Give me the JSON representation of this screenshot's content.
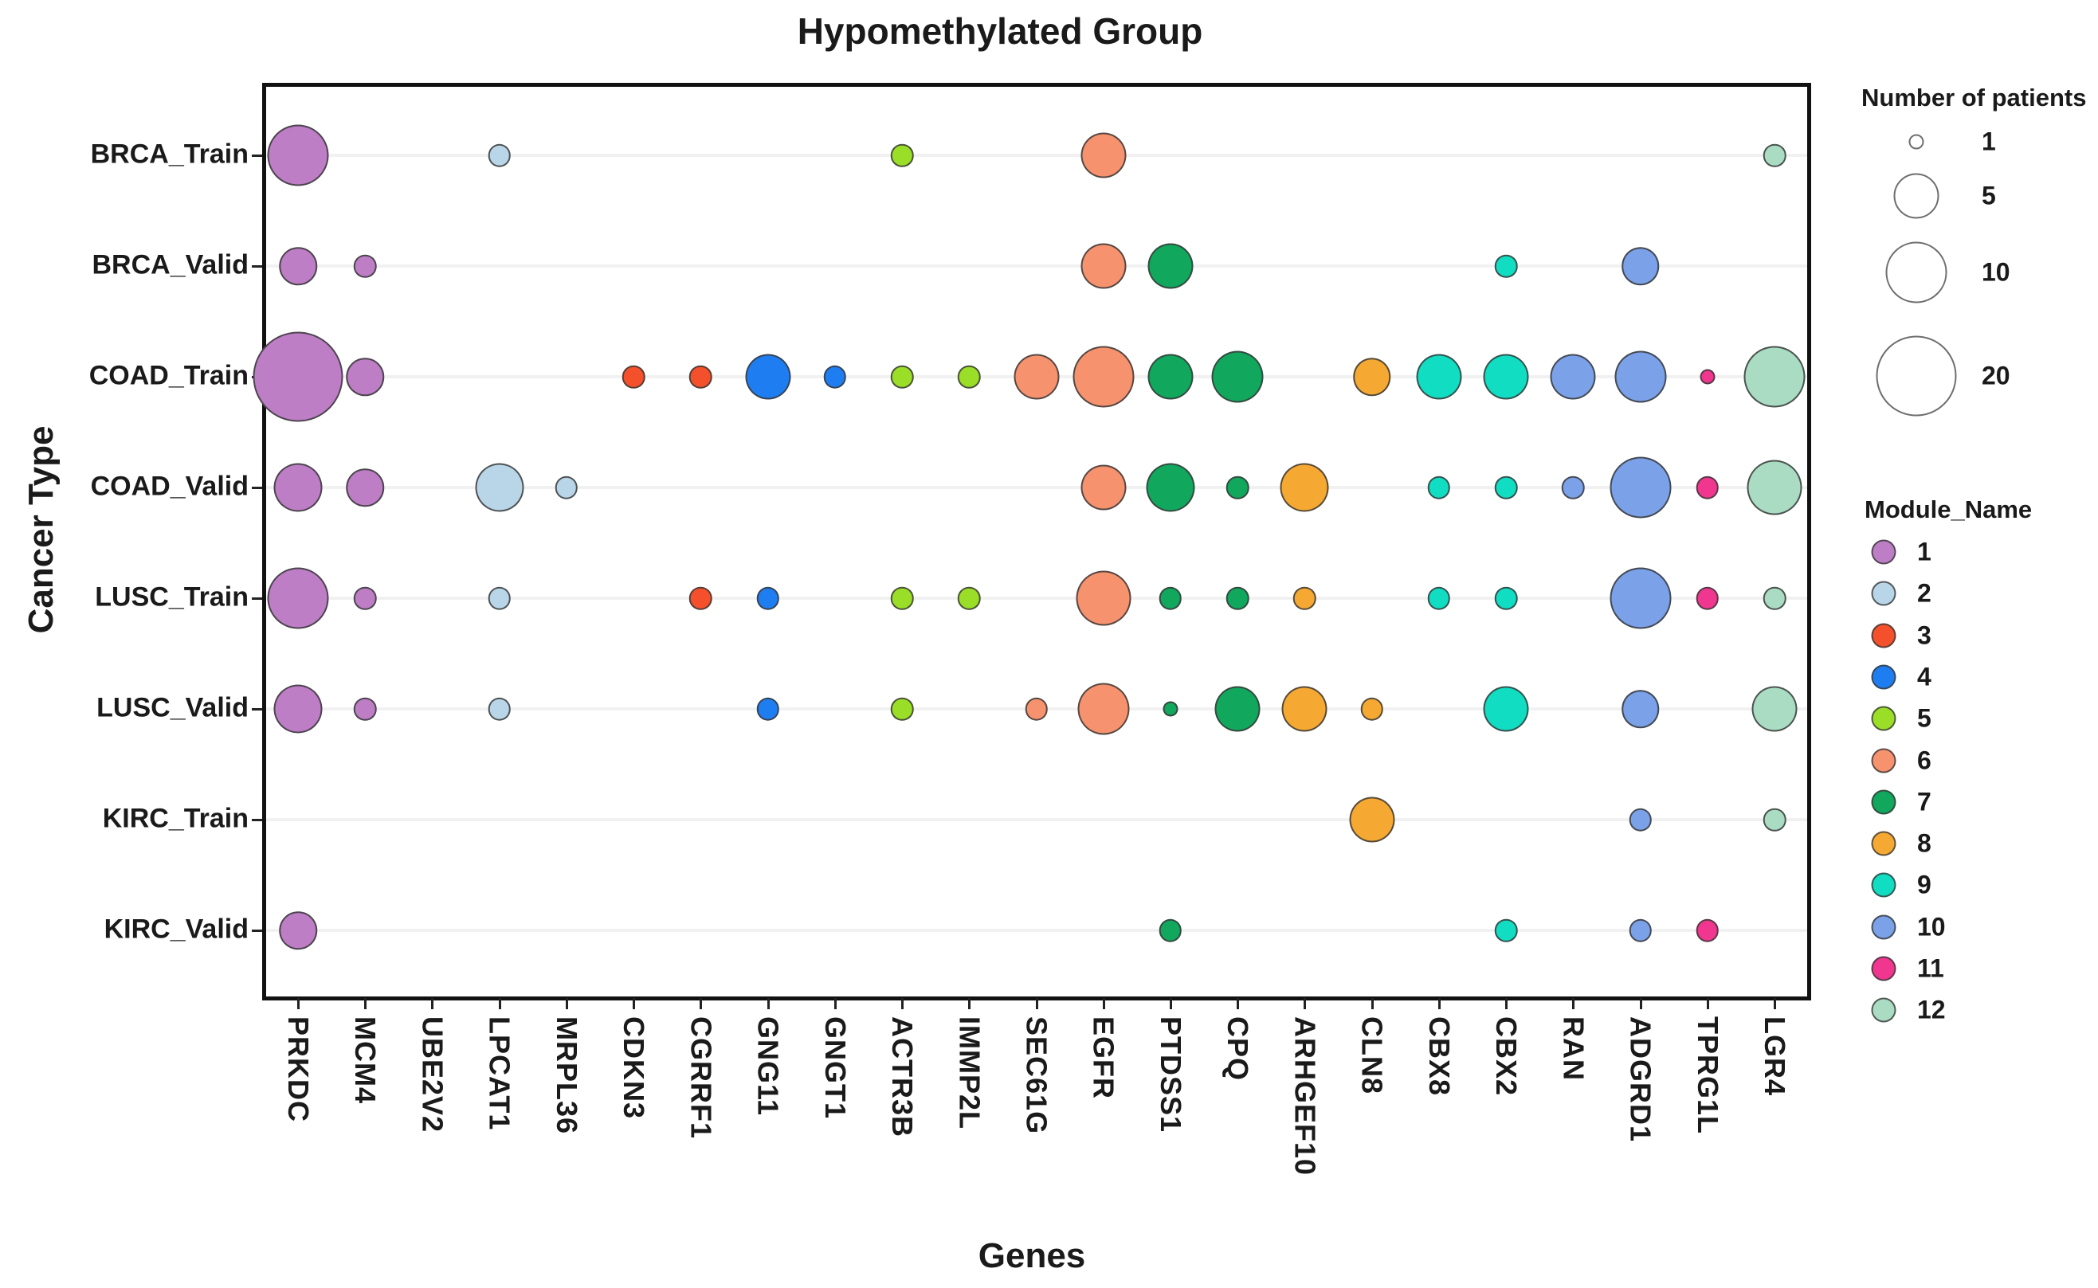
{
  "chart_data": {
    "type": "scatter",
    "subtype": "bubble",
    "title": "Hypomethylated Group",
    "xlabel": "Genes",
    "ylabel": "Cancer Type",
    "grid": "faint-horizontal",
    "legend_position": "right",
    "x_categories": [
      "PRKDC",
      "MCM4",
      "UBE2V2",
      "LPCAT1",
      "MRPL36",
      "CDKN3",
      "CGRRF1",
      "GNG11",
      "GNGT1",
      "ACTR3B",
      "IMMP2L",
      "SEC61G",
      "EGFR",
      "PTDSS1",
      "CPQ",
      "ARHGEF10",
      "CLN8",
      "CBX8",
      "CBX2",
      "RAN",
      "ADGRD1",
      "TPRG1L",
      "LGR4"
    ],
    "y_categories": [
      "BRCA_Train",
      "BRCA_Valid",
      "COAD_Train",
      "COAD_Valid",
      "LUSC_Train",
      "LUSC_Valid",
      "KIRC_Train",
      "KIRC_Valid"
    ],
    "gene_module": {
      "PRKDC": 1,
      "MCM4": 1,
      "UBE2V2": 1,
      "LPCAT1": 2,
      "MRPL36": 2,
      "CDKN3": 3,
      "CGRRF1": 3,
      "GNG11": 4,
      "GNGT1": 4,
      "ACTR3B": 5,
      "IMMP2L": 5,
      "SEC61G": 6,
      "EGFR": 6,
      "PTDSS1": 7,
      "CPQ": 7,
      "ARHGEF10": 8,
      "CLN8": 8,
      "CBX8": 9,
      "CBX2": 9,
      "RAN": 10,
      "ADGRD1": 10,
      "TPRG1L": 11,
      "LGR4": 12
    },
    "points": [
      {
        "row": "BRCA_Train",
        "gene": "PRKDC",
        "patients": 10
      },
      {
        "row": "BRCA_Train",
        "gene": "LPCAT1",
        "patients": 2
      },
      {
        "row": "BRCA_Train",
        "gene": "ACTR3B",
        "patients": 2
      },
      {
        "row": "BRCA_Train",
        "gene": "EGFR",
        "patients": 5
      },
      {
        "row": "BRCA_Train",
        "gene": "LGR4",
        "patients": 2
      },
      {
        "row": "BRCA_Valid",
        "gene": "PRKDC",
        "patients": 4
      },
      {
        "row": "BRCA_Valid",
        "gene": "MCM4",
        "patients": 2
      },
      {
        "row": "BRCA_Valid",
        "gene": "EGFR",
        "patients": 5
      },
      {
        "row": "BRCA_Valid",
        "gene": "PTDSS1",
        "patients": 5
      },
      {
        "row": "BRCA_Valid",
        "gene": "CBX2",
        "patients": 2
      },
      {
        "row": "BRCA_Valid",
        "gene": "ADGRD1",
        "patients": 4
      },
      {
        "row": "COAD_Train",
        "gene": "PRKDC",
        "patients": 25
      },
      {
        "row": "COAD_Train",
        "gene": "MCM4",
        "patients": 4
      },
      {
        "row": "COAD_Train",
        "gene": "CDKN3",
        "patients": 2
      },
      {
        "row": "COAD_Train",
        "gene": "CGRRF1",
        "patients": 2
      },
      {
        "row": "COAD_Train",
        "gene": "GNG11",
        "patients": 5
      },
      {
        "row": "COAD_Train",
        "gene": "GNGT1",
        "patients": 2
      },
      {
        "row": "COAD_Train",
        "gene": "ACTR3B",
        "patients": 2
      },
      {
        "row": "COAD_Train",
        "gene": "IMMP2L",
        "patients": 2
      },
      {
        "row": "COAD_Train",
        "gene": "SEC61G",
        "patients": 5
      },
      {
        "row": "COAD_Train",
        "gene": "EGFR",
        "patients": 10
      },
      {
        "row": "COAD_Train",
        "gene": "PTDSS1",
        "patients": 5
      },
      {
        "row": "COAD_Train",
        "gene": "CPQ",
        "patients": 7
      },
      {
        "row": "COAD_Train",
        "gene": "CLN8",
        "patients": 4
      },
      {
        "row": "COAD_Train",
        "gene": "CBX8",
        "patients": 5
      },
      {
        "row": "COAD_Train",
        "gene": "CBX2",
        "patients": 5
      },
      {
        "row": "COAD_Train",
        "gene": "RAN",
        "patients": 5
      },
      {
        "row": "COAD_Train",
        "gene": "ADGRD1",
        "patients": 7
      },
      {
        "row": "COAD_Train",
        "gene": "TPRG1L",
        "patients": 1
      },
      {
        "row": "COAD_Train",
        "gene": "LGR4",
        "patients": 10
      },
      {
        "row": "COAD_Valid",
        "gene": "PRKDC",
        "patients": 6
      },
      {
        "row": "COAD_Valid",
        "gene": "MCM4",
        "patients": 4
      },
      {
        "row": "COAD_Valid",
        "gene": "LPCAT1",
        "patients": 6
      },
      {
        "row": "COAD_Valid",
        "gene": "MRPL36",
        "patients": 2
      },
      {
        "row": "COAD_Valid",
        "gene": "EGFR",
        "patients": 5
      },
      {
        "row": "COAD_Valid",
        "gene": "PTDSS1",
        "patients": 6
      },
      {
        "row": "COAD_Valid",
        "gene": "CPQ",
        "patients": 2
      },
      {
        "row": "COAD_Valid",
        "gene": "ARHGEF10",
        "patients": 6
      },
      {
        "row": "COAD_Valid",
        "gene": "CBX8",
        "patients": 2
      },
      {
        "row": "COAD_Valid",
        "gene": "CBX2",
        "patients": 2
      },
      {
        "row": "COAD_Valid",
        "gene": "RAN",
        "patients": 2
      },
      {
        "row": "COAD_Valid",
        "gene": "ADGRD1",
        "patients": 10
      },
      {
        "row": "COAD_Valid",
        "gene": "TPRG1L",
        "patients": 2
      },
      {
        "row": "COAD_Valid",
        "gene": "LGR4",
        "patients": 8
      },
      {
        "row": "LUSC_Train",
        "gene": "PRKDC",
        "patients": 10
      },
      {
        "row": "LUSC_Train",
        "gene": "MCM4",
        "patients": 2
      },
      {
        "row": "LUSC_Train",
        "gene": "LPCAT1",
        "patients": 2
      },
      {
        "row": "LUSC_Train",
        "gene": "CGRRF1",
        "patients": 2
      },
      {
        "row": "LUSC_Train",
        "gene": "GNG11",
        "patients": 2
      },
      {
        "row": "LUSC_Train",
        "gene": "ACTR3B",
        "patients": 2
      },
      {
        "row": "LUSC_Train",
        "gene": "IMMP2L",
        "patients": 2
      },
      {
        "row": "LUSC_Train",
        "gene": "EGFR",
        "patients": 8
      },
      {
        "row": "LUSC_Train",
        "gene": "PTDSS1",
        "patients": 2
      },
      {
        "row": "LUSC_Train",
        "gene": "CPQ",
        "patients": 2
      },
      {
        "row": "LUSC_Train",
        "gene": "ARHGEF10",
        "patients": 2
      },
      {
        "row": "LUSC_Train",
        "gene": "CBX8",
        "patients": 2
      },
      {
        "row": "LUSC_Train",
        "gene": "CBX2",
        "patients": 2
      },
      {
        "row": "LUSC_Train",
        "gene": "ADGRD1",
        "patients": 10
      },
      {
        "row": "LUSC_Train",
        "gene": "TPRG1L",
        "patients": 2
      },
      {
        "row": "LUSC_Train",
        "gene": "LGR4",
        "patients": 2
      },
      {
        "row": "LUSC_Valid",
        "gene": "PRKDC",
        "patients": 6
      },
      {
        "row": "LUSC_Valid",
        "gene": "MCM4",
        "patients": 2
      },
      {
        "row": "LUSC_Valid",
        "gene": "LPCAT1",
        "patients": 2
      },
      {
        "row": "LUSC_Valid",
        "gene": "GNG11",
        "patients": 2
      },
      {
        "row": "LUSC_Valid",
        "gene": "ACTR3B",
        "patients": 2
      },
      {
        "row": "LUSC_Valid",
        "gene": "SEC61G",
        "patients": 2
      },
      {
        "row": "LUSC_Valid",
        "gene": "EGFR",
        "patients": 7
      },
      {
        "row": "LUSC_Valid",
        "gene": "PTDSS1",
        "patients": 1
      },
      {
        "row": "LUSC_Valid",
        "gene": "CPQ",
        "patients": 5
      },
      {
        "row": "LUSC_Valid",
        "gene": "ARHGEF10",
        "patients": 5
      },
      {
        "row": "LUSC_Valid",
        "gene": "CLN8",
        "patients": 2
      },
      {
        "row": "LUSC_Valid",
        "gene": "CBX2",
        "patients": 5
      },
      {
        "row": "LUSC_Valid",
        "gene": "ADGRD1",
        "patients": 4
      },
      {
        "row": "LUSC_Valid",
        "gene": "LGR4",
        "patients": 5
      },
      {
        "row": "KIRC_Train",
        "gene": "CLN8",
        "patients": 5
      },
      {
        "row": "KIRC_Train",
        "gene": "ADGRD1",
        "patients": 2
      },
      {
        "row": "KIRC_Train",
        "gene": "LGR4",
        "patients": 2
      },
      {
        "row": "KIRC_Valid",
        "gene": "PRKDC",
        "patients": 4
      },
      {
        "row": "KIRC_Valid",
        "gene": "PTDSS1",
        "patients": 2
      },
      {
        "row": "KIRC_Valid",
        "gene": "CBX2",
        "patients": 2
      },
      {
        "row": "KIRC_Valid",
        "gene": "ADGRD1",
        "patients": 2
      },
      {
        "row": "KIRC_Valid",
        "gene": "TPRG1L",
        "patients": 2
      }
    ],
    "size_legend": {
      "title": "Number of patients",
      "values": [
        1,
        5,
        10,
        20
      ]
    },
    "module_legend": {
      "title": "Module_Name",
      "items": [
        {
          "module": "1",
          "color": "#bd7ec6"
        },
        {
          "module": "2",
          "color": "#b9d6e8"
        },
        {
          "module": "3",
          "color": "#f4502b"
        },
        {
          "module": "4",
          "color": "#1f7df2"
        },
        {
          "module": "5",
          "color": "#9ade28"
        },
        {
          "module": "6",
          "color": "#f7926f"
        },
        {
          "module": "7",
          "color": "#11a75d"
        },
        {
          "module": "8",
          "color": "#f5a933"
        },
        {
          "module": "9",
          "color": "#10ddc2"
        },
        {
          "module": "10",
          "color": "#7ba1e8"
        },
        {
          "module": "11",
          "color": "#f0368e"
        },
        {
          "module": "12",
          "color": "#aadcc3"
        }
      ]
    }
  }
}
